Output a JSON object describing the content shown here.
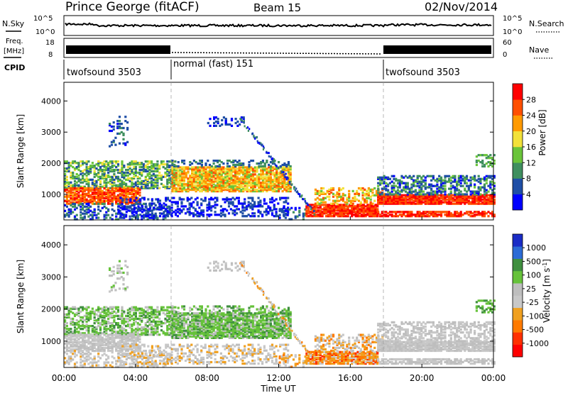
{
  "header": {
    "title": "Prince George (fitACF)",
    "beam": "Beam 15",
    "date": "02/Nov/2014"
  },
  "top_panel": {
    "left_label": "N.Sky",
    "right_label": "N.Search",
    "left_ticks": [
      "10^5",
      "10^0"
    ],
    "right_ticks": [
      "10^5",
      "10^0"
    ]
  },
  "freq_panel": {
    "left_label_1": "Freq.",
    "left_label_2": "[MHz]",
    "right_label": "Nave",
    "left_ticks": [
      "18",
      "8"
    ],
    "right_ticks": [
      "60",
      "0"
    ]
  },
  "cpid": {
    "label": "CPID",
    "segments": [
      "twofsound 3503",
      "normal (fast) 151",
      "twofsound 3503"
    ]
  },
  "colors": {
    "scale": [
      "#0000ff",
      "#1f4ea6",
      "#3f8f5f",
      "#6ac43a",
      "#f2e13a",
      "#ff9a00",
      "#ff4f00",
      "#ff0000"
    ],
    "velocity_scale": [
      "#1a2cc6",
      "#2c6bd6",
      "#3f8f3f",
      "#66c23a",
      "#bebebe",
      "#c8c8c8",
      "#f0a020",
      "#ff7a00",
      "#ff3000",
      "#ff0000"
    ],
    "ground_grey": "#b4b4b4"
  },
  "chart_data": [
    {
      "type": "heatmap",
      "ylabel": "Slant Range [km]",
      "xlabel": "",
      "ylim": [
        180,
        4600
      ],
      "yticks": [
        "1000",
        "2000",
        "3000",
        "4000"
      ],
      "xticks": [],
      "colorbar": {
        "label": "Power [dB]",
        "ticks": [
          "4",
          "8",
          "12",
          "16",
          "20",
          "24",
          "28"
        ],
        "range": [
          0,
          32
        ]
      }
    },
    {
      "type": "heatmap",
      "ylabel": "Slant Range [km]",
      "xlabel": "Time UT",
      "ylim": [
        180,
        4600
      ],
      "yticks": [
        "1000",
        "2000",
        "3000",
        "4000"
      ],
      "xticks": [
        "00:00",
        "04:00",
        "08:00",
        "12:00",
        "16:00",
        "20:00",
        "00:00"
      ],
      "colorbar": {
        "label": "Velocity [m s^-1]",
        "ticks": [
          "1000",
          "500",
          "100",
          "25",
          "-25",
          "-100",
          "-500",
          "-1000"
        ],
        "range": [
          -1000,
          1000
        ]
      }
    }
  ]
}
